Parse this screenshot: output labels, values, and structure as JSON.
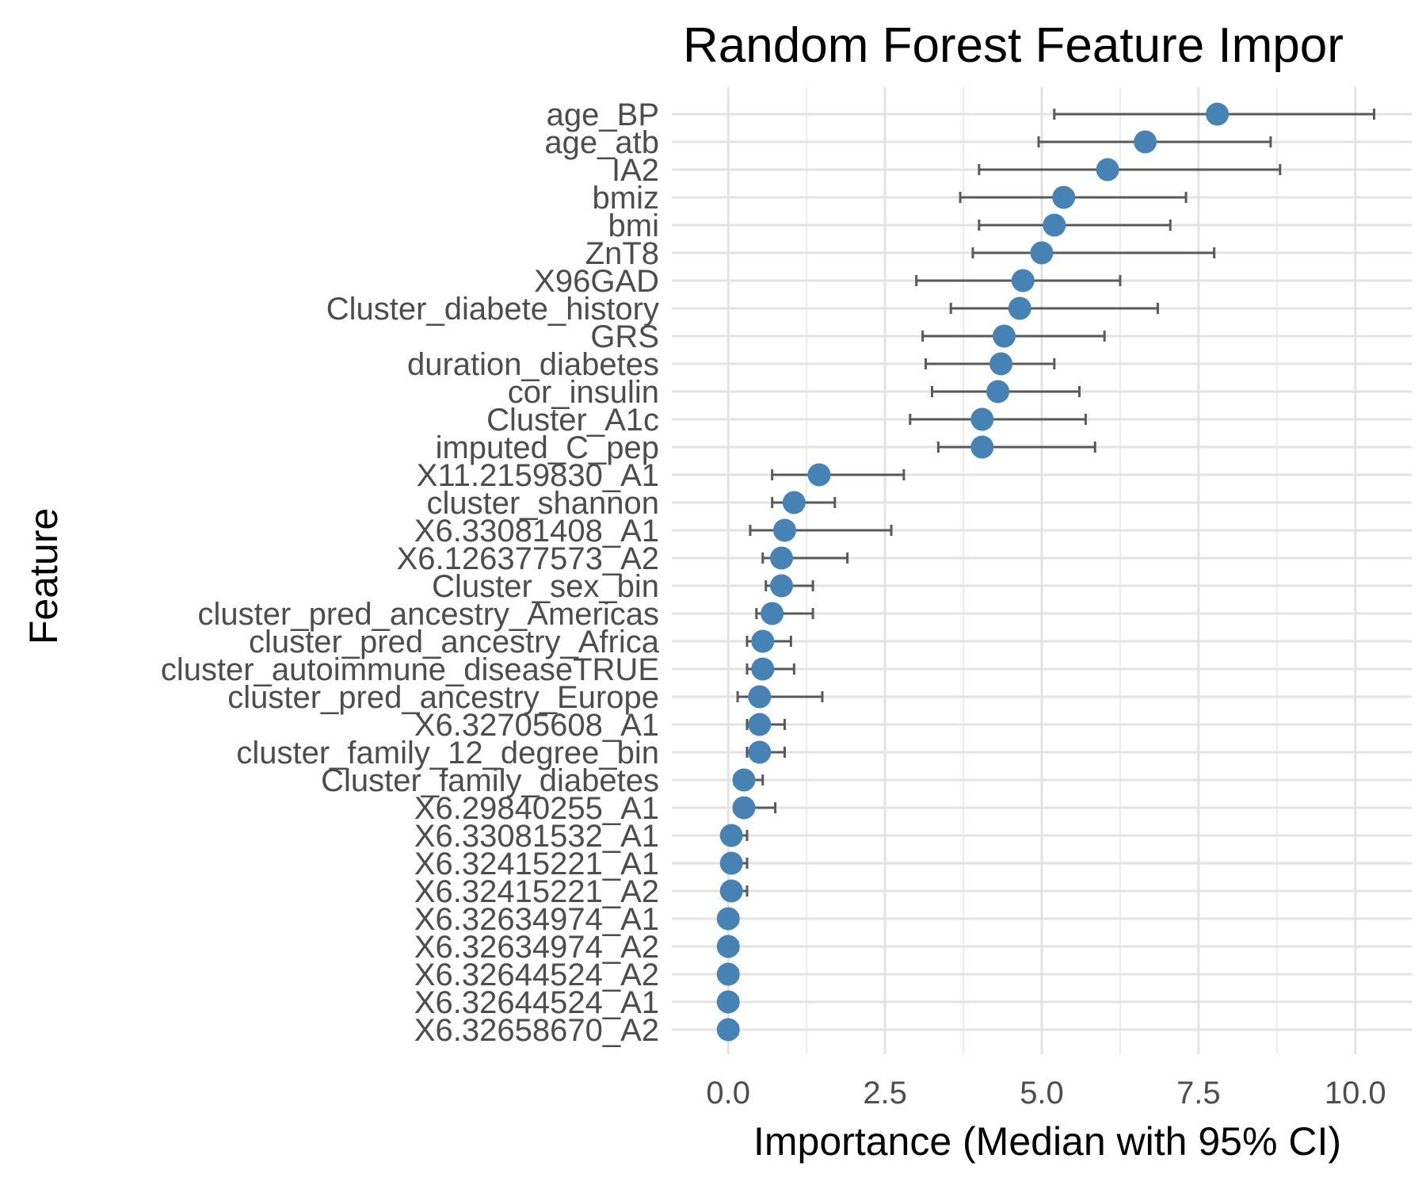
{
  "chart_data": {
    "type": "scatter",
    "title": "Random Forest Feature Impor",
    "xlabel": "Importance (Median with 95% CI)",
    "ylabel": "Feature",
    "xlim": [
      -0.9,
      10.9
    ],
    "xticks": [
      0.0,
      2.5,
      5.0,
      7.5,
      10.0
    ],
    "xtick_labels": [
      "0.0",
      "2.5",
      "5.0",
      "7.5",
      "10.0"
    ],
    "grid": true,
    "point_color": "#4682B4",
    "errorbar_color": "#595959",
    "points": [
      {
        "feature": "age_BP",
        "median": 7.8,
        "lower": 5.2,
        "upper": 10.3
      },
      {
        "feature": "age_atb",
        "median": 6.65,
        "lower": 4.95,
        "upper": 8.65
      },
      {
        "feature": "IA2",
        "median": 6.05,
        "lower": 4.0,
        "upper": 8.8
      },
      {
        "feature": "bmiz",
        "median": 5.35,
        "lower": 3.7,
        "upper": 7.3
      },
      {
        "feature": "bmi",
        "median": 5.2,
        "lower": 4.0,
        "upper": 7.05
      },
      {
        "feature": "ZnT8",
        "median": 5.0,
        "lower": 3.9,
        "upper": 7.75
      },
      {
        "feature": "X96GAD",
        "median": 4.7,
        "lower": 3.0,
        "upper": 6.25
      },
      {
        "feature": "Cluster_diabete_history",
        "median": 4.65,
        "lower": 3.55,
        "upper": 6.85
      },
      {
        "feature": "GRS",
        "median": 4.4,
        "lower": 3.1,
        "upper": 6.0
      },
      {
        "feature": "duration_diabetes",
        "median": 4.35,
        "lower": 3.15,
        "upper": 5.2
      },
      {
        "feature": "cor_insulin",
        "median": 4.3,
        "lower": 3.25,
        "upper": 5.6
      },
      {
        "feature": "Cluster_A1c",
        "median": 4.05,
        "lower": 2.9,
        "upper": 5.7
      },
      {
        "feature": "imputed_C_pep",
        "median": 4.05,
        "lower": 3.35,
        "upper": 5.85
      },
      {
        "feature": "X11.2159830_A1",
        "median": 1.45,
        "lower": 0.7,
        "upper": 2.8
      },
      {
        "feature": "cluster_shannon",
        "median": 1.05,
        "lower": 0.7,
        "upper": 1.7
      },
      {
        "feature": "X6.33081408_A1",
        "median": 0.9,
        "lower": 0.35,
        "upper": 2.6
      },
      {
        "feature": "X6.126377573_A2",
        "median": 0.85,
        "lower": 0.55,
        "upper": 1.9
      },
      {
        "feature": "Cluster_sex_bin",
        "median": 0.85,
        "lower": 0.6,
        "upper": 1.35
      },
      {
        "feature": "cluster_pred_ancestry_Americas",
        "median": 0.7,
        "lower": 0.45,
        "upper": 1.35
      },
      {
        "feature": "cluster_pred_ancestry_Africa",
        "median": 0.55,
        "lower": 0.3,
        "upper": 1.0
      },
      {
        "feature": "cluster_autoimmune_diseaseTRUE",
        "median": 0.55,
        "lower": 0.3,
        "upper": 1.05
      },
      {
        "feature": "cluster_pred_ancestry_Europe",
        "median": 0.5,
        "lower": 0.15,
        "upper": 1.5
      },
      {
        "feature": "X6.32705608_A1",
        "median": 0.5,
        "lower": 0.3,
        "upper": 0.9
      },
      {
        "feature": "cluster_family_12_degree_bin",
        "median": 0.5,
        "lower": 0.3,
        "upper": 0.9
      },
      {
        "feature": "Cluster_family_diabetes",
        "median": 0.25,
        "lower": 0.1,
        "upper": 0.55
      },
      {
        "feature": "X6.29840255_A1",
        "median": 0.25,
        "lower": 0.1,
        "upper": 0.75
      },
      {
        "feature": "X6.33081532_A1",
        "median": 0.05,
        "lower": 0.0,
        "upper": 0.3
      },
      {
        "feature": "X6.32415221_A1",
        "median": 0.05,
        "lower": 0.0,
        "upper": 0.3
      },
      {
        "feature": "X6.32415221_A2",
        "median": 0.05,
        "lower": 0.0,
        "upper": 0.3
      },
      {
        "feature": "X6.32634974_A1",
        "median": 0.0,
        "lower": 0.0,
        "upper": 0.15
      },
      {
        "feature": "X6.32634974_A2",
        "median": 0.0,
        "lower": 0.0,
        "upper": 0.15
      },
      {
        "feature": "X6.32644524_A2",
        "median": 0.0,
        "lower": 0.0,
        "upper": 0.15
      },
      {
        "feature": "X6.32644524_A1",
        "median": 0.0,
        "lower": 0.0,
        "upper": 0.15
      },
      {
        "feature": "X6.32658670_A2",
        "median": 0.0,
        "lower": 0.0,
        "upper": 0.15
      }
    ]
  }
}
